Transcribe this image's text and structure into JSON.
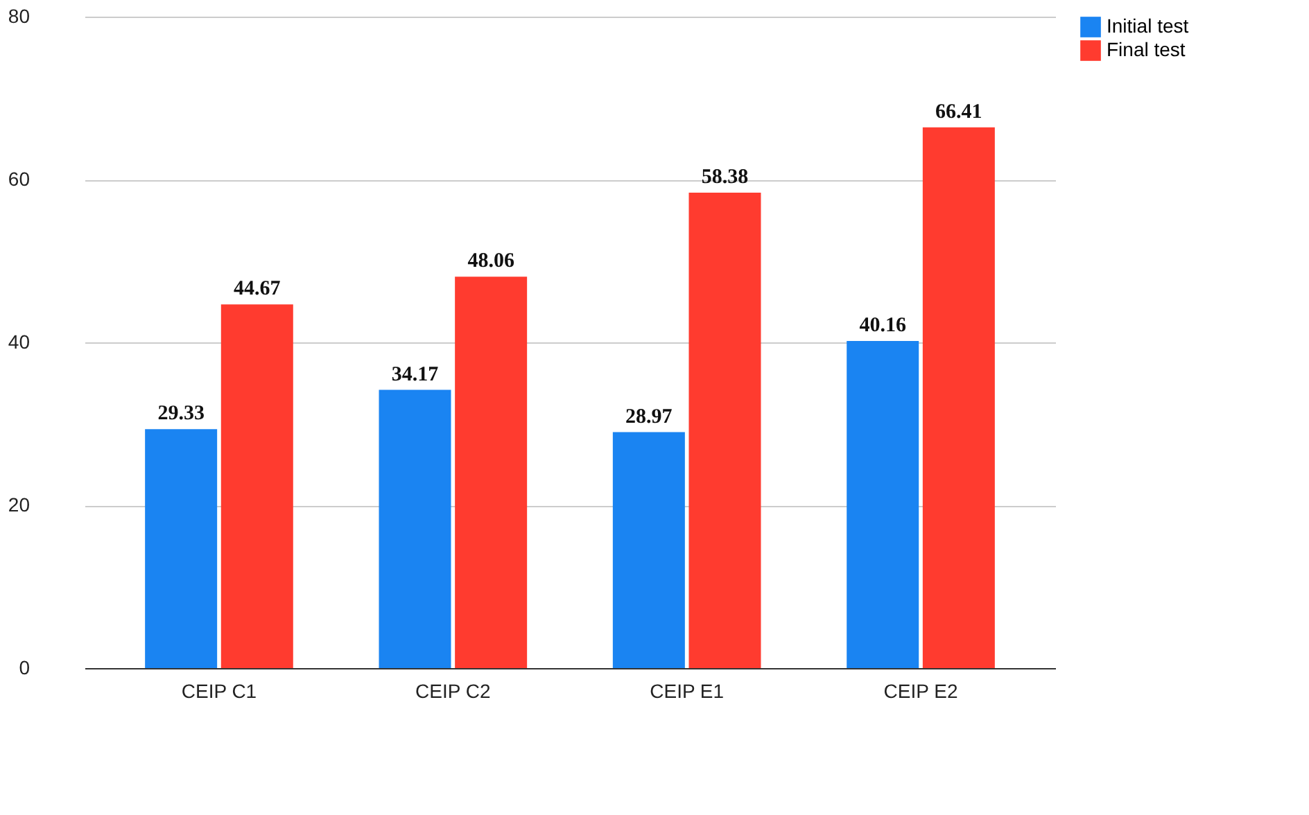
{
  "chart_data": {
    "type": "bar",
    "categories": [
      "CEIP C1",
      "CEIP C2",
      "CEIP E1",
      "CEIP E2"
    ],
    "series": [
      {
        "name": "Initial test",
        "color": "#1a84f2",
        "values": [
          29.33,
          34.17,
          28.97,
          40.16
        ]
      },
      {
        "name": "Final test",
        "color": "#ff3b2f",
        "values": [
          44.67,
          48.06,
          58.38,
          66.41
        ]
      }
    ],
    "ylim": [
      0,
      80
    ],
    "yticks": [
      0,
      20,
      40,
      60,
      80
    ],
    "grid": "y",
    "legend": "top right",
    "data_labels": true
  }
}
